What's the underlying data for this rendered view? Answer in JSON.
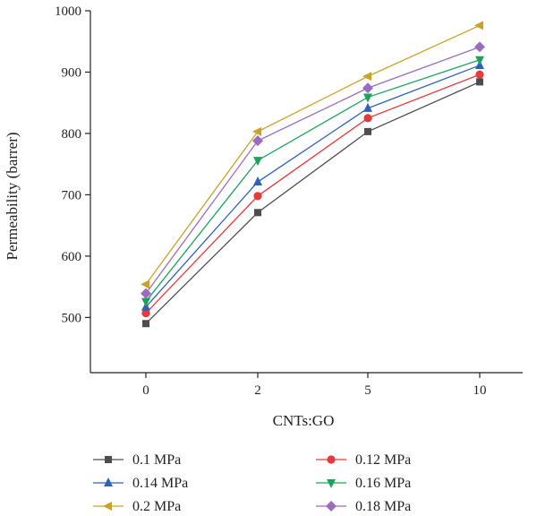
{
  "chart_data": {
    "type": "line",
    "title": "",
    "xlabel": "CNTs:GO",
    "ylabel": "Permeability (barrer)",
    "categories": [
      "0",
      "2",
      "5",
      "10"
    ],
    "ylim": [
      410,
      1000
    ],
    "yticks": [
      500,
      600,
      700,
      800,
      900,
      1000
    ],
    "grid": false,
    "legend_position": "bottom",
    "series": [
      {
        "name": "0.1 MPa",
        "color": "#4d4d4d",
        "marker": "square",
        "values": [
          490,
          671,
          803,
          884
        ]
      },
      {
        "name": "0.12 MPa",
        "color": "#e8393b",
        "marker": "circle",
        "values": [
          507,
          698,
          825,
          896
        ]
      },
      {
        "name": "0.14 MPa",
        "color": "#2f62b7",
        "marker": "triangle-up",
        "values": [
          517,
          721,
          841,
          911
        ]
      },
      {
        "name": "0.16 MPa",
        "color": "#1aa35b",
        "marker": "triangle-down",
        "values": [
          526,
          756,
          859,
          920
        ]
      },
      {
        "name": "0.2 MPa",
        "color": "#c9a227",
        "marker": "triangle-left",
        "values": [
          554,
          803,
          893,
          976
        ]
      },
      {
        "name": "0.18 MPa",
        "color": "#9b6bc2",
        "marker": "diamond",
        "values": [
          539,
          788,
          874,
          941
        ]
      }
    ]
  }
}
